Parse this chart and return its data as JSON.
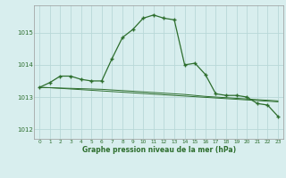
{
  "hours": [
    0,
    1,
    2,
    3,
    4,
    5,
    6,
    7,
    8,
    9,
    10,
    11,
    12,
    13,
    14,
    15,
    16,
    17,
    18,
    19,
    20,
    21,
    22,
    23
  ],
  "curve1": [
    1013.3,
    1013.45,
    1013.65,
    1013.65,
    1013.55,
    1013.5,
    1013.5,
    1014.2,
    1014.85,
    1015.1,
    1015.45,
    1015.55,
    1015.45,
    1015.4,
    1014.0,
    1014.05,
    1013.7,
    1013.1,
    1013.05,
    1013.05,
    1013.0,
    1012.8,
    1012.75,
    1012.4
  ],
  "curve2": [
    1013.3,
    1013.29,
    1013.28,
    1013.27,
    1013.26,
    1013.25,
    1013.24,
    1013.22,
    1013.2,
    1013.18,
    1013.16,
    1013.14,
    1013.12,
    1013.1,
    1013.08,
    1013.05,
    1013.02,
    1013.0,
    1012.98,
    1012.96,
    1012.94,
    1012.92,
    1012.9,
    1012.88
  ],
  "curve3": [
    1013.3,
    1013.29,
    1013.27,
    1013.25,
    1013.23,
    1013.21,
    1013.19,
    1013.17,
    1013.15,
    1013.13,
    1013.11,
    1013.09,
    1013.07,
    1013.05,
    1013.03,
    1013.01,
    1012.99,
    1012.97,
    1012.95,
    1012.93,
    1012.91,
    1012.89,
    1012.87,
    1012.85
  ],
  "line_color": "#2d6e2d",
  "bg_color": "#d8eeee",
  "grid_color": "#b8d8d8",
  "ylabel_ticks": [
    1012,
    1013,
    1014,
    1015
  ],
  "xlabel": "Graphe pression niveau de la mer (hPa)",
  "ylim": [
    1011.7,
    1015.85
  ],
  "xlim": [
    -0.5,
    23.5
  ]
}
